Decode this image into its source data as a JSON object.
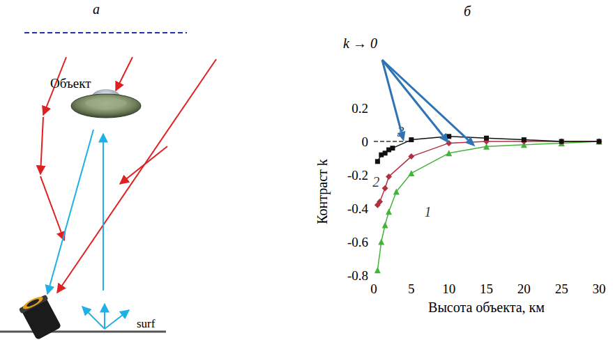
{
  "panel_a": {
    "letter": "а",
    "object_label": "Объект",
    "surface_label": "surf"
  },
  "panel_b": {
    "letter": "б"
  },
  "chart_data": {
    "type": "line",
    "x_label": "Высота объекта, км",
    "y_label": "Контраст k",
    "xlim": [
      0,
      30
    ],
    "xticks": [
      0,
      5,
      10,
      15,
      20,
      25,
      30
    ],
    "ylim": [
      -0.8,
      0.2
    ],
    "yticks": [
      -0.8,
      -0.6,
      -0.4,
      -0.2,
      0,
      0.2
    ],
    "grid": false,
    "series": [
      {
        "name": "1",
        "color": "#43b33a",
        "marker": "triangle",
        "x": [
          0.5,
          1,
          1.5,
          2,
          3,
          5,
          10,
          15,
          20,
          25,
          30
        ],
        "values": [
          -0.77,
          -0.6,
          -0.5,
          -0.42,
          -0.3,
          -0.19,
          -0.07,
          -0.03,
          -0.02,
          -0.01,
          0
        ]
      },
      {
        "name": "2",
        "color": "#b0303f",
        "marker": "diamond",
        "x": [
          0.5,
          0.8,
          1.5,
          2,
          5,
          10,
          15,
          20,
          25,
          30
        ],
        "values": [
          -0.38,
          -0.36,
          -0.28,
          -0.21,
          -0.09,
          -0.01,
          0,
          0,
          0,
          0
        ]
      },
      {
        "name": "3",
        "color": "#111111",
        "marker": "square",
        "x": [
          0.5,
          1,
          1.5,
          2,
          2.5,
          5,
          10,
          15,
          20,
          25,
          30
        ],
        "values": [
          -0.12,
          -0.08,
          -0.07,
          -0.05,
          -0.04,
          0.01,
          0.03,
          0.02,
          0.01,
          0,
          0
        ]
      }
    ],
    "hline": {
      "y": 0,
      "x": [
        0,
        5
      ],
      "line_style": "dashed",
      "color": "#333333"
    },
    "annotations": [
      {
        "text": "1",
        "x": 7.2,
        "y": -0.42
      },
      {
        "text": "2",
        "x": 0.3,
        "y": -0.24
      },
      {
        "text": "3",
        "x": 3.6,
        "y": 0.06
      },
      {
        "text": "k → 0",
        "color": "#2e74b5",
        "arrows_to": [
          [
            4,
            0
          ],
          [
            10,
            -0.01
          ],
          [
            13.5,
            -0.03
          ]
        ]
      }
    ]
  }
}
